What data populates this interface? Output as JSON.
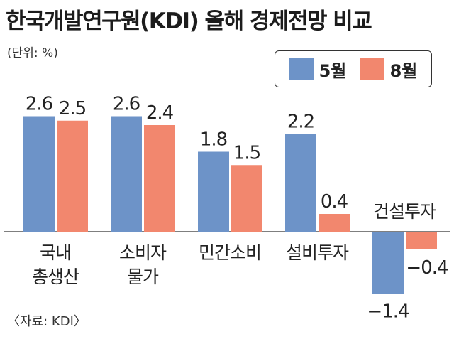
{
  "title": "한국개발연구원(KDI) 올해 경제전망 비교",
  "unit": "(단위: %)",
  "source": "〈자료: KDI〉",
  "colors": {
    "may": "#6d93c8",
    "aug": "#f2876e",
    "axis": "#555555",
    "text": "#222222"
  },
  "chart_data": {
    "type": "bar",
    "title": "한국개발연구원(KDI) 올해 경제전망 비교",
    "categories": [
      "국내\n총생산",
      "소비자\n물가",
      "민간소비",
      "설비투자",
      "건설투자"
    ],
    "series": [
      {
        "name": "5월",
        "values": [
          2.6,
          2.6,
          1.8,
          2.2,
          -1.4
        ]
      },
      {
        "name": "8월",
        "values": [
          2.5,
          2.4,
          1.5,
          0.4,
          -0.4
        ]
      }
    ],
    "value_labels": [
      [
        "2.6",
        "2.6",
        "1.8",
        "2.2",
        "−1.4"
      ],
      [
        "2.5",
        "2.4",
        "1.5",
        "0.4",
        "−0.4"
      ]
    ],
    "ylim": [
      -1.6,
      3.0
    ],
    "legend": "top-right",
    "grid": false
  }
}
